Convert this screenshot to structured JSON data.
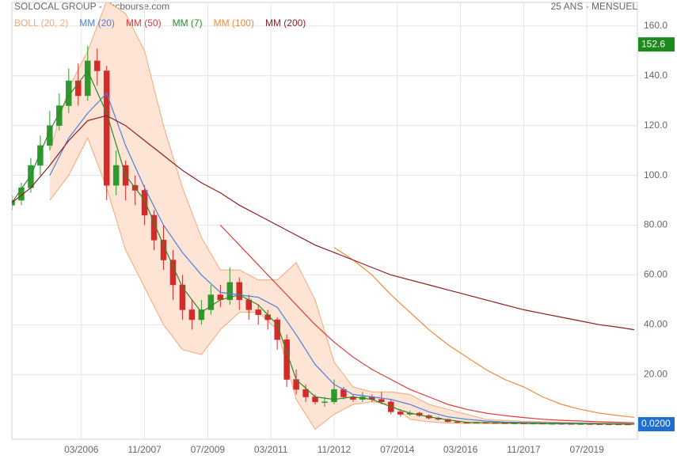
{
  "chart_data": {
    "type": "candlestick",
    "title": "SOLOCAL GROUP - abcbourse.com",
    "subtitle": "25 ANS - MENSUEL",
    "xlim": [
      "05/2004",
      "11/2020"
    ],
    "xticks": [
      "03/2006",
      "11/2007",
      "07/2009",
      "03/2011",
      "11/2012",
      "07/2014",
      "03/2016",
      "11/2017",
      "07/2019"
    ],
    "ylim": [
      -6,
      169.5
    ],
    "yticks": [
      {
        "value": 20,
        "label": "20.00"
      },
      {
        "value": 40,
        "label": "40.00"
      },
      {
        "value": 60,
        "label": "60.00"
      },
      {
        "value": 80,
        "label": "80.00"
      },
      {
        "value": 100,
        "label": "100.0"
      },
      {
        "value": 120,
        "label": "120.0"
      },
      {
        "value": 140,
        "label": "140.0"
      },
      {
        "value": 160,
        "label": "160.0"
      }
    ],
    "grid": true,
    "up_color": "#2e9a2e",
    "down_color": "#d42a2a",
    "x": [
      "05/2004",
      "08/2004",
      "11/2004",
      "02/2005",
      "05/2005",
      "08/2005",
      "11/2005",
      "02/2006",
      "05/2006",
      "08/2006",
      "11/2006",
      "02/2007",
      "05/2007",
      "08/2007",
      "11/2007",
      "02/2008",
      "05/2008",
      "08/2008",
      "11/2008",
      "02/2009",
      "05/2009",
      "08/2009",
      "11/2009",
      "02/2010",
      "05/2010",
      "08/2010",
      "11/2010",
      "02/2011",
      "05/2011",
      "08/2011",
      "11/2011",
      "02/2012",
      "05/2012",
      "08/2012",
      "11/2012",
      "02/2013",
      "05/2013",
      "08/2013",
      "11/2013",
      "02/2014",
      "05/2014",
      "08/2014",
      "11/2014",
      "02/2015",
      "05/2015",
      "08/2015",
      "11/2015",
      "02/2016",
      "05/2016",
      "08/2016",
      "11/2016",
      "02/2017",
      "05/2017",
      "08/2017",
      "11/2017",
      "02/2018",
      "05/2018",
      "08/2018",
      "11/2018",
      "02/2019",
      "05/2019",
      "08/2019",
      "11/2019",
      "02/2020",
      "05/2020",
      "08/2020"
    ],
    "ohlc": [
      [
        88,
        92,
        86,
        90
      ],
      [
        90,
        97,
        88,
        95
      ],
      [
        95,
        107,
        93,
        104
      ],
      [
        104,
        116,
        100,
        112
      ],
      [
        112,
        126,
        110,
        120
      ],
      [
        120,
        133,
        118,
        128
      ],
      [
        128,
        143,
        125,
        138
      ],
      [
        138,
        145,
        128,
        132
      ],
      [
        132,
        152,
        130,
        146
      ],
      [
        146,
        151,
        136,
        142
      ],
      [
        142,
        144,
        90,
        96
      ],
      [
        96,
        110,
        92,
        104
      ],
      [
        104,
        106,
        90,
        96
      ],
      [
        96,
        100,
        88,
        94
      ],
      [
        94,
        96,
        80,
        84
      ],
      [
        84,
        86,
        70,
        74
      ],
      [
        74,
        80,
        62,
        66
      ],
      [
        66,
        70,
        50,
        56
      ],
      [
        56,
        60,
        42,
        46
      ],
      [
        46,
        50,
        38,
        42
      ],
      [
        42,
        50,
        40,
        46
      ],
      [
        46,
        56,
        44,
        52
      ],
      [
        52,
        56,
        47,
        50
      ],
      [
        50,
        63,
        48,
        57
      ],
      [
        57,
        59,
        46,
        50
      ],
      [
        50,
        52,
        42,
        46
      ],
      [
        46,
        48,
        40,
        44
      ],
      [
        44,
        46,
        38,
        42
      ],
      [
        42,
        43,
        30,
        34
      ],
      [
        34,
        36,
        15,
        18
      ],
      [
        18,
        22,
        12,
        14
      ],
      [
        14,
        16,
        9,
        11
      ],
      [
        11,
        12,
        8,
        9
      ],
      [
        9,
        11,
        7,
        9
      ],
      [
        9,
        18,
        8,
        14
      ],
      [
        14,
        15,
        10,
        11
      ],
      [
        11,
        12,
        9,
        10
      ],
      [
        10,
        13,
        9,
        11
      ],
      [
        11,
        12,
        9,
        10
      ],
      [
        10,
        13,
        8,
        9
      ],
      [
        9,
        10,
        4,
        5
      ],
      [
        5,
        6,
        3,
        4
      ],
      [
        4,
        5.5,
        3.5,
        4.5
      ],
      [
        4.5,
        5,
        3,
        3.5
      ],
      [
        3.5,
        4,
        2,
        2.5
      ],
      [
        2.5,
        3,
        1.5,
        2
      ],
      [
        2,
        2.2,
        0.8,
        1
      ],
      [
        1,
        1.2,
        0.6,
        0.8
      ],
      [
        0.8,
        1,
        0.5,
        0.6
      ],
      [
        0.6,
        1,
        0.5,
        0.8
      ],
      [
        0.8,
        0.9,
        0.6,
        0.7
      ],
      [
        0.7,
        0.8,
        0.5,
        0.6
      ],
      [
        0.6,
        0.7,
        0.45,
        0.5
      ],
      [
        0.5,
        0.6,
        0.4,
        0.5
      ],
      [
        0.5,
        0.55,
        0.35,
        0.4
      ],
      [
        0.4,
        0.5,
        0.35,
        0.4
      ],
      [
        0.4,
        0.45,
        0.25,
        0.3
      ],
      [
        0.3,
        0.35,
        0.25,
        0.3
      ],
      [
        0.3,
        0.32,
        0.2,
        0.25
      ],
      [
        0.25,
        0.28,
        0.18,
        0.2
      ],
      [
        0.2,
        0.25,
        0.15,
        0.2
      ],
      [
        0.2,
        0.22,
        0.12,
        0.15
      ],
      [
        0.15,
        0.17,
        0.08,
        0.1
      ],
      [
        0.1,
        0.12,
        0.06,
        0.08
      ],
      [
        0.08,
        0.09,
        0.04,
        0.05
      ],
      [
        0.05,
        0.06,
        0.015,
        0.02
      ]
    ],
    "high_label": {
      "value": 152.6,
      "label": "152.6",
      "color": "#1e8a1e"
    },
    "last_label": {
      "value": 0.02,
      "label": "0.0200",
      "color": "#1f6fd0"
    },
    "overlay": {
      "x": [
        "05/2004",
        "11/2004",
        "05/2005",
        "11/2005",
        "05/2006",
        "11/2006",
        "05/2007",
        "11/2007",
        "05/2008",
        "11/2008",
        "05/2009",
        "11/2009",
        "05/2010",
        "11/2010",
        "05/2011",
        "11/2011",
        "05/2012",
        "11/2012",
        "05/2013",
        "11/2013",
        "05/2014",
        "11/2014",
        "05/2015",
        "11/2015",
        "05/2016",
        "11/2016",
        "05/2017",
        "11/2017",
        "05/2018",
        "11/2018",
        "05/2019",
        "11/2019",
        "05/2020",
        "10/2020"
      ],
      "series": [
        {
          "name": "BOLL (20, 2)",
          "color": "#f3a77a",
          "fill": "#fde4d4",
          "upper": [
            null,
            null,
            110,
            135,
            150,
            170,
            165,
            150,
            120,
            95,
            75,
            62,
            62,
            58,
            58,
            65,
            50,
            25,
            15,
            13,
            13,
            12,
            8,
            6,
            4,
            2,
            1.5,
            1.2,
            1,
            0.8,
            0.6,
            0.5,
            0.4,
            0.3
          ],
          "lower": [
            null,
            null,
            90,
            100,
            115,
            95,
            70,
            55,
            40,
            30,
            28,
            38,
            45,
            45,
            38,
            10,
            -2,
            4,
            8,
            9,
            8,
            2,
            1,
            0.5,
            0.3,
            0.2,
            0.2,
            0.1,
            0.1,
            0.1,
            0.05,
            0.05,
            0,
            0
          ]
        },
        {
          "name": "MM (20)",
          "color": "#4a7fe0",
          "values": [
            null,
            null,
            100,
            115,
            125,
            133,
            112,
            95,
            80,
            69,
            60,
            53,
            52,
            51,
            47,
            36,
            24,
            16,
            12,
            11,
            10,
            8,
            5,
            3,
            2,
            1.3,
            0.9,
            0.7,
            0.6,
            0.5,
            0.4,
            0.3,
            0.2,
            0.15
          ]
        },
        {
          "name": "MM (50)",
          "color": "#e03a3a",
          "values": [
            null,
            null,
            null,
            null,
            null,
            null,
            null,
            null,
            null,
            null,
            null,
            80,
            72,
            64,
            56,
            48,
            40,
            33,
            27,
            22,
            18,
            14,
            11,
            8,
            6,
            4.5,
            3.5,
            2.7,
            2,
            1.6,
            1.3,
            1,
            0.8,
            0.6
          ]
        },
        {
          "name": "MM (7)",
          "color": "#2a8a2a",
          "values": [
            89,
            100,
            118,
            132,
            142,
            125,
            100,
            90,
            72,
            55,
            45,
            50,
            52,
            48,
            40,
            18,
            11,
            10,
            11,
            10,
            7,
            4.5,
            3,
            1.8,
            0.8,
            0.75,
            0.6,
            0.5,
            0.4,
            0.3,
            0.25,
            0.18,
            0.08,
            0.03
          ]
        },
        {
          "name": "MM (100)",
          "color": "#f08a3a",
          "values": [
            null,
            null,
            null,
            null,
            null,
            null,
            null,
            null,
            null,
            null,
            null,
            null,
            null,
            null,
            null,
            null,
            null,
            71,
            66,
            60,
            52,
            45,
            38,
            32,
            27,
            22,
            18,
            15,
            11,
            8,
            6,
            4.5,
            3.5,
            2.8
          ]
        },
        {
          "name": "MM (200)",
          "color": "#8b1e1e",
          "values": [
            89,
            95,
            104,
            114,
            122,
            124,
            120,
            114,
            108,
            102,
            97,
            93,
            88,
            84,
            80,
            76,
            72,
            69,
            66,
            63,
            60,
            58,
            56,
            54,
            52,
            50,
            48,
            46,
            44.5,
            43,
            41.5,
            40,
            39,
            38
          ]
        }
      ]
    }
  }
}
